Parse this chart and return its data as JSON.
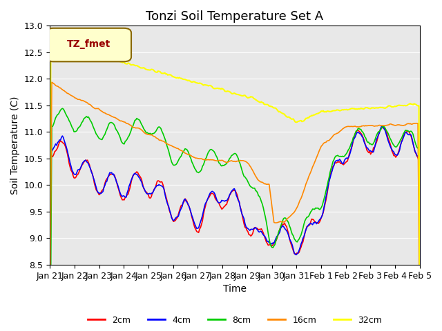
{
  "title": "Tonzi Soil Temperature Set A",
  "xlabel": "Time",
  "ylabel": "Soil Temperature (C)",
  "ylim": [
    8.5,
    13.0
  ],
  "yticks": [
    8.5,
    9.0,
    9.5,
    10.0,
    10.5,
    11.0,
    11.5,
    12.0,
    12.5,
    13.0
  ],
  "xtick_labels": [
    "Jan 21",
    "Jan 22",
    "Jan 23",
    "Jan 24",
    "Jan 25",
    "Jan 26",
    "Jan 27",
    "Jan 28",
    "Jan 29",
    "Jan 30",
    "Jan 31",
    "Feb 1",
    "Feb 2",
    "Feb 3",
    "Feb 4",
    "Feb 5"
  ],
  "legend_label": "TZ_fmet",
  "series_labels": [
    "2cm",
    "4cm",
    "8cm",
    "16cm",
    "32cm"
  ],
  "series_colors": [
    "#ff0000",
    "#0000ff",
    "#00cc00",
    "#ff8800",
    "#ffff00"
  ],
  "background_color": "#e8e8e8",
  "title_fontsize": 13,
  "axis_fontsize": 10,
  "tick_fontsize": 9
}
